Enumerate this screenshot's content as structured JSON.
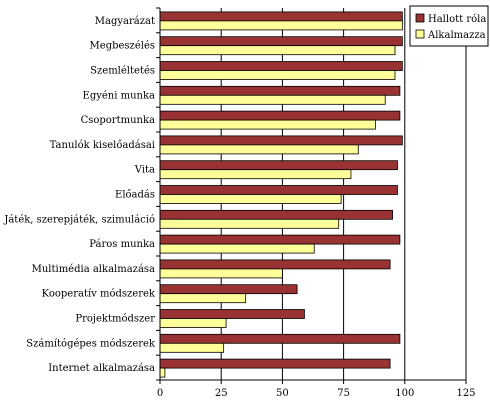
{
  "chart_data": {
    "type": "bar",
    "orientation": "horizontal",
    "categories": [
      "Magyarázat",
      "Megbeszélés",
      "Szemléltetés",
      "Egyéni munka",
      "Csoportmunka",
      "Tanulók kiselőadásai",
      "Vita",
      "Előadás",
      "Játék, szerepjáték, szimuláció",
      "Páros munka",
      "Multimédia alkalmazása",
      "Kooperatív módszerek",
      "Projektmódszer",
      "Számítógépes módszerek",
      "Internet alkalmazása"
    ],
    "series": [
      {
        "name": "Hallott róla",
        "color": "#993333",
        "values": [
          99,
          99,
          99,
          98,
          98,
          99,
          97,
          97,
          95,
          98,
          94,
          56,
          59,
          98,
          94
        ]
      },
      {
        "name": "Alkalmazza",
        "color": "#ffff99",
        "values": [
          99,
          96,
          96,
          92,
          88,
          81,
          78,
          74,
          73,
          63,
          50,
          35,
          27,
          26,
          2
        ]
      }
    ],
    "xlim": [
      0,
      125
    ],
    "xticks": [
      0,
      25,
      50,
      75,
      100,
      125
    ],
    "grid": true,
    "legend_position": "top-right"
  }
}
